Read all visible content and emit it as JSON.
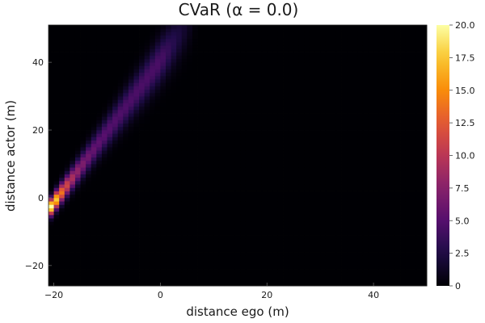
{
  "chart_data": {
    "type": "heatmap",
    "title": "CVaR (α = 0.0)",
    "xlabel": "distance ego (m)",
    "ylabel": "distance actor (m)",
    "xlim": [
      -21,
      50
    ],
    "ylim": [
      -26,
      51
    ],
    "xticks": [
      -20,
      0,
      20,
      40
    ],
    "yticks": [
      -20,
      0,
      20,
      40
    ],
    "colorbar": {
      "range": [
        0,
        20
      ],
      "ticks": [
        0,
        2.5,
        5,
        7.5,
        10,
        12.5,
        15,
        17.5,
        20
      ],
      "tick_labels": [
        "0",
        "2.5",
        "5.0",
        "7.5",
        "10.0",
        "12.5",
        "15.0",
        "17.5",
        "20.0"
      ],
      "colormap": "inferno"
    },
    "grid": false,
    "field": {
      "description_keys": "value(x,y) = ridge along y = 2.1*(x+20)",
      "ridge_peak_at_x_min": 20,
      "ridge_peak_far": 4.5,
      "ridge_decay_scale_m": 3,
      "ridge_slope": 2.1,
      "ridge_x_origin": -20,
      "ridge_width_near_m": 2.5,
      "ridge_width_far_m": 7,
      "cutoff_x": 7
    }
  }
}
